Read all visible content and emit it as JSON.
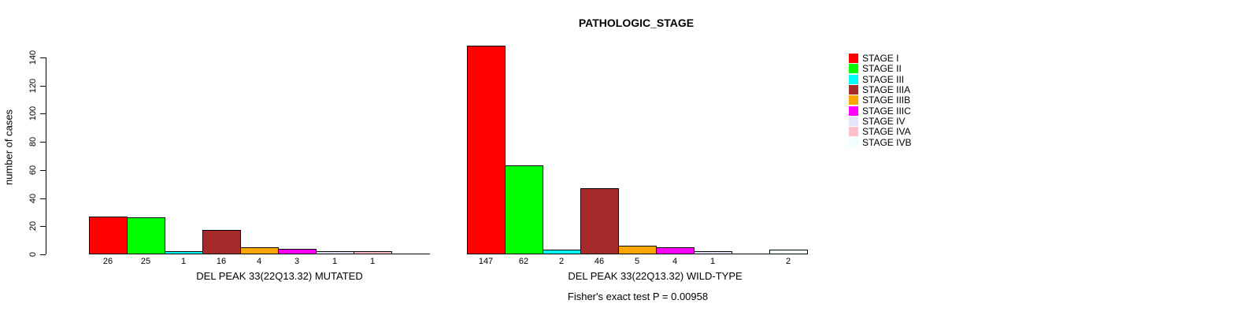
{
  "chart_data": {
    "type": "bar",
    "title": "PATHOLOGIC_STAGE",
    "ylabel": "number of cases",
    "ylim": [
      0,
      140
    ],
    "yticks": [
      0,
      20,
      40,
      60,
      80,
      100,
      120,
      140
    ],
    "grid": false,
    "legend_position": "right",
    "categories": [
      "STAGE I",
      "STAGE II",
      "STAGE III",
      "STAGE IIIA",
      "STAGE IIIB",
      "STAGE IIIC",
      "STAGE IV",
      "STAGE IVA",
      "STAGE IVB"
    ],
    "colors": [
      "#FF0000",
      "#00FF00",
      "#00FFFF",
      "#A52A2A",
      "#FFA500",
      "#FF00FF",
      "#E6E6FA",
      "#FFC0CB",
      "#F0FFFF"
    ],
    "series": [
      {
        "name": "DEL PEAK 33(22Q13.32) MUTATED",
        "values": [
          26,
          25,
          1,
          16,
          4,
          3,
          1,
          1,
          0
        ]
      },
      {
        "name": "DEL PEAK 33(22Q13.32) WILD-TYPE",
        "values": [
          147,
          62,
          2,
          46,
          5,
          4,
          1,
          0,
          2
        ]
      }
    ],
    "annotation": "Fisher's exact test P = 0.00958",
    "background_color": "#FFFFFF",
    "axis_color": "#000000"
  }
}
